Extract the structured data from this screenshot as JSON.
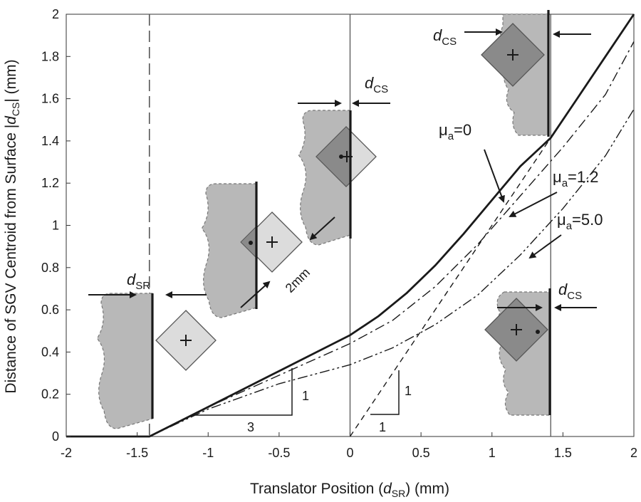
{
  "chart_data": {
    "type": "line",
    "title": "",
    "xlabel": "Translator Position (d_SR) (mm)",
    "ylabel": "Distance of SGV Centroid from Surface |d_CS| (mm)",
    "xlabel_parts": [
      "Translator Position (",
      "d",
      "SR",
      ") (mm)"
    ],
    "ylabel_parts": [
      "Distance of SGV Centroid from Surface |",
      "d",
      "CS",
      "| (mm)"
    ],
    "xlim": [
      -2,
      2
    ],
    "ylim": [
      0,
      2
    ],
    "xticks": [
      -2,
      -1.5,
      -1,
      -0.5,
      0,
      0.5,
      1,
      1.5,
      2
    ],
    "xtick_labels": [
      "-2",
      "-1.5",
      "-1",
      "-0.5",
      "0",
      "0.5",
      "1",
      "1.5",
      "2"
    ],
    "yticks": [
      0,
      0.2,
      0.4,
      0.6,
      0.8,
      1,
      1.2,
      1.4,
      1.6,
      1.8,
      2
    ],
    "ytick_labels": [
      "0",
      "0.2",
      "0.4",
      "0.6",
      "0.8",
      "1",
      "1.2",
      "1.4",
      "1.6",
      "1.8",
      "2"
    ],
    "grid": false,
    "reference_lines": [
      {
        "x": -1.414,
        "style": "dashed"
      },
      {
        "x": 0,
        "style": "solid"
      },
      {
        "x": 1.414,
        "style": "solid"
      }
    ],
    "series": [
      {
        "label_base": "μ",
        "label_sub": "a",
        "label_rest": "=0",
        "style": "solid-thick",
        "x": [
          -2,
          -1.414,
          -1.0,
          -0.5,
          0.0,
          0.2,
          0.4,
          0.6,
          0.8,
          1.0,
          1.2,
          1.414,
          1.6,
          1.8,
          2.0
        ],
        "y": [
          0,
          0,
          0.14,
          0.31,
          0.48,
          0.57,
          0.68,
          0.81,
          0.96,
          1.12,
          1.28,
          1.414,
          1.6,
          1.8,
          2.0
        ]
      },
      {
        "label_base": "μ",
        "label_sub": "a",
        "label_rest": "=1.2",
        "style": "dash-dot",
        "x": [
          -1.414,
          -1.0,
          -0.5,
          0.0,
          0.3,
          0.6,
          0.9,
          1.2,
          1.5,
          1.8,
          2.0
        ],
        "y": [
          0,
          0.14,
          0.29,
          0.44,
          0.55,
          0.71,
          0.91,
          1.14,
          1.37,
          1.62,
          1.87
        ]
      },
      {
        "label_base": "μ",
        "label_sub": "a",
        "label_rest": "=5.0",
        "style": "dash-dot-dot",
        "x": [
          -1.414,
          -1.0,
          -0.5,
          0.0,
          0.3,
          0.6,
          0.9,
          1.2,
          1.5,
          1.8,
          2.0
        ],
        "y": [
          0,
          0.13,
          0.25,
          0.34,
          0.42,
          0.53,
          0.67,
          0.86,
          1.08,
          1.33,
          1.55
        ]
      },
      {
        "label": "",
        "style": "dashed",
        "x": [
          0,
          1.414
        ],
        "y": [
          0,
          1.414
        ]
      }
    ],
    "annotations": {
      "slope_left": {
        "rise": "1",
        "run": "3"
      },
      "slope_right": {
        "rise": "1",
        "run": "1"
      },
      "dim_2mm": "2mm",
      "d_sr": {
        "base": "d",
        "sub": "SR"
      },
      "d_cs": {
        "base": "d",
        "sub": "CS"
      }
    }
  },
  "colors": {
    "curve": "#1a1a1a",
    "reference_line": "#555555",
    "surface_fill": "#b8b8b8",
    "sgv_fill": "#dcdcdc",
    "sgv_overlap": "#8a8a8a"
  }
}
